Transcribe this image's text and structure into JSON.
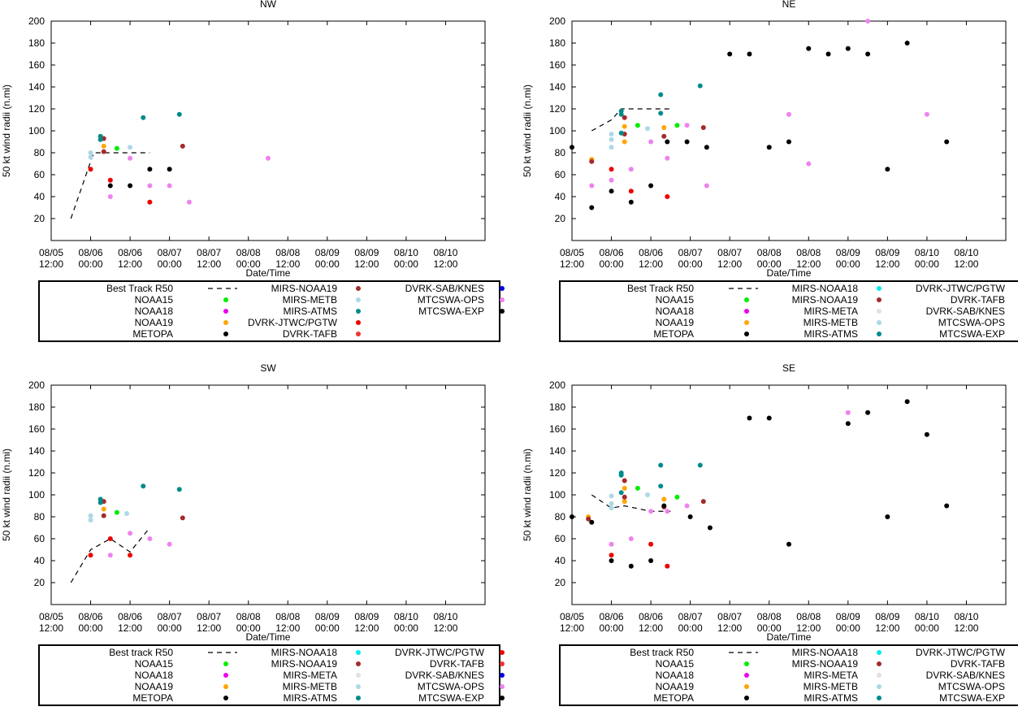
{
  "shared": {
    "xlabel": "Date/Time",
    "ylabel": "50 kt wind radii (n.mi)",
    "ylim": [
      0,
      200
    ],
    "yticks": [
      20,
      40,
      60,
      80,
      100,
      120,
      140,
      160,
      180,
      200
    ],
    "xlim": [
      0,
      132
    ],
    "xticks": [
      {
        "x": 0,
        "line1": "08/05",
        "line2": "12:00"
      },
      {
        "x": 12,
        "line1": "08/06",
        "line2": "00:00"
      },
      {
        "x": 24,
        "line1": "08/06",
        "line2": "12:00"
      },
      {
        "x": 36,
        "line1": "08/07",
        "line2": "00:00"
      },
      {
        "x": 48,
        "line1": "08/07",
        "line2": "12:00"
      },
      {
        "x": 60,
        "line1": "08/08",
        "line2": "00:00"
      },
      {
        "x": 72,
        "line1": "08/08",
        "line2": "12:00"
      },
      {
        "x": 84,
        "line1": "08/09",
        "line2": "00:00"
      },
      {
        "x": 96,
        "line1": "08/09",
        "line2": "12:00"
      },
      {
        "x": 108,
        "line1": "08/10",
        "line2": "00:00"
      },
      {
        "x": 120,
        "line1": "08/10",
        "line2": "12:00"
      }
    ],
    "colors": {
      "NOAA15": "#00ee00",
      "NOAA18": "#ee00ee",
      "NOAA19": "#ffa500",
      "METOPA": "#000000",
      "MIRS-NOAA18": "#00eeee",
      "MIRS-NOAA19": "#a52a2a",
      "MIRS-META": "#e8dede",
      "MIRS-METB": "#add8e6",
      "MIRS-ATMS": "#008b8b",
      "DVRK-JTWC/PGTW": "#ee0000",
      "DVRK-TAFB": "#ee3333",
      "DVRK-SAB/KNES": "#0000dd",
      "MTCSWA-OPS": "#ee82ee",
      "MTCSWA-EXP": "#000000"
    }
  },
  "chart_data": [
    {
      "type": "scatter",
      "title": "NW",
      "legend_title": "Best Track R50",
      "legend_cols": [
        [
          "Best Track R50",
          "NOAA15",
          "NOAA18",
          "NOAA19",
          "METOPA"
        ],
        [
          "MIRS-NOAA19",
          "MIRS-METB",
          "MIRS-ATMS",
          "DVRK-JTWC/PGTW",
          "DVRK-TAFB"
        ],
        [
          "DVRK-SAB/KNES",
          "MTCSWA-OPS",
          "MTCSWA-EXP"
        ]
      ],
      "best_track": [
        [
          6,
          20
        ],
        [
          12,
          72
        ],
        [
          13,
          80
        ],
        [
          30,
          80
        ]
      ],
      "series": [
        {
          "name": "NOAA15",
          "points": [
            [
              20,
              84
            ]
          ]
        },
        {
          "name": "NOAA19",
          "points": [
            [
              16,
              86
            ]
          ]
        },
        {
          "name": "MIRS-NOAA19",
          "points": [
            [
              16,
              81
            ],
            [
              16,
              93
            ],
            [
              40,
              86
            ]
          ]
        },
        {
          "name": "MIRS-METB",
          "points": [
            [
              12,
              76
            ],
            [
              12,
              80
            ],
            [
              24,
              85
            ]
          ]
        },
        {
          "name": "MIRS-ATMS",
          "points": [
            [
              15,
              95
            ],
            [
              15,
              92
            ],
            [
              28,
              112
            ],
            [
              39,
              115
            ]
          ]
        },
        {
          "name": "DVRK-JTWC/PGTW",
          "points": [
            [
              12,
              65
            ],
            [
              18,
              55
            ],
            [
              30,
              35
            ]
          ]
        },
        {
          "name": "MTCSWA-OPS",
          "points": [
            [
              18,
              40
            ],
            [
              24,
              75
            ],
            [
              30,
              50
            ],
            [
              36,
              50
            ],
            [
              42,
              35
            ],
            [
              66,
              75
            ]
          ]
        },
        {
          "name": "MTCSWA-EXP",
          "points": [
            [
              18,
              50
            ],
            [
              24,
              50
            ],
            [
              30,
              65
            ],
            [
              36,
              65
            ]
          ]
        }
      ]
    },
    {
      "type": "scatter",
      "title": "NE",
      "legend_title": "Best Track R50",
      "legend_cols": [
        [
          "Best Track R50",
          "NOAA15",
          "NOAA18",
          "NOAA19",
          "METOPA"
        ],
        [
          "MIRS-NOAA18",
          "MIRS-NOAA19",
          "MIRS-META",
          "MIRS-METB",
          "MIRS-ATMS"
        ],
        [
          "DVRK-JTWC/PGTW",
          "DVRK-TAFB",
          "DVRK-SAB/KNES",
          "MTCSWA-OPS",
          "MTCSWA-EXP"
        ]
      ],
      "best_track": [
        [
          6,
          100
        ],
        [
          12,
          110
        ],
        [
          15,
          120
        ],
        [
          30,
          120
        ]
      ],
      "series": [
        {
          "name": "NOAA15",
          "points": [
            [
              20,
              105
            ],
            [
              32,
              105
            ]
          ]
        },
        {
          "name": "NOAA19",
          "points": [
            [
              6,
              74
            ],
            [
              16,
              90
            ],
            [
              16,
              104
            ],
            [
              28,
              103
            ]
          ]
        },
        {
          "name": "MIRS-NOAA19",
          "points": [
            [
              6,
              72
            ],
            [
              16,
              97
            ],
            [
              16,
              112
            ],
            [
              28,
              95
            ],
            [
              40,
              103
            ]
          ]
        },
        {
          "name": "MIRS-METB",
          "points": [
            [
              12,
              85
            ],
            [
              12,
              92
            ],
            [
              12,
              97
            ],
            [
              23,
              102
            ]
          ]
        },
        {
          "name": "MIRS-ATMS",
          "points": [
            [
              15,
              118
            ],
            [
              15,
              115
            ],
            [
              15,
              98
            ],
            [
              27,
              133
            ],
            [
              27,
              116
            ],
            [
              39,
              141
            ]
          ]
        },
        {
          "name": "DVRK-JTWC/PGTW",
          "points": [
            [
              12,
              65
            ],
            [
              18,
              45
            ],
            [
              29,
              40
            ]
          ]
        },
        {
          "name": "MTCSWA-OPS",
          "points": [
            [
              6,
              50
            ],
            [
              12,
              55
            ],
            [
              18,
              65
            ],
            [
              24,
              90
            ],
            [
              29,
              75
            ],
            [
              35,
              105
            ],
            [
              41,
              50
            ],
            [
              66,
              115
            ],
            [
              72,
              70
            ],
            [
              90,
              200
            ],
            [
              108,
              115
            ]
          ]
        },
        {
          "name": "MTCSWA-EXP",
          "points": [
            [
              0,
              85
            ],
            [
              6,
              30
            ],
            [
              12,
              45
            ],
            [
              18,
              35
            ],
            [
              24,
              50
            ],
            [
              29,
              90
            ],
            [
              35,
              90
            ],
            [
              41,
              85
            ],
            [
              48,
              170
            ],
            [
              54,
              170
            ],
            [
              60,
              85
            ],
            [
              66,
              90
            ],
            [
              72,
              175
            ],
            [
              78,
              170
            ],
            [
              84,
              175
            ],
            [
              90,
              170
            ],
            [
              96,
              65
            ],
            [
              102,
              180
            ],
            [
              114,
              90
            ]
          ]
        }
      ]
    },
    {
      "type": "scatter",
      "title": "SW",
      "legend_title": "Best track R50",
      "legend_cols": [
        [
          "Best track R50",
          "NOAA15",
          "NOAA18",
          "NOAA19",
          "METOPA"
        ],
        [
          "MIRS-NOAA18",
          "MIRS-NOAA19",
          "MIRS-META",
          "MIRS-METB",
          "MIRS-ATMS"
        ],
        [
          "DVRK-JTWC/PGTW",
          "DVRK-TAFB",
          "DVRK-SAB/KNES",
          "MTCSWA-OPS",
          "MTCSWA-EXP"
        ]
      ],
      "best_track": [
        [
          6,
          20
        ],
        [
          12,
          50
        ],
        [
          18,
          60
        ],
        [
          24,
          48
        ],
        [
          30,
          70
        ]
      ],
      "series": [
        {
          "name": "NOAA15",
          "points": [
            [
              20,
              84
            ]
          ]
        },
        {
          "name": "NOAA19",
          "points": [
            [
              16,
              87
            ]
          ]
        },
        {
          "name": "MIRS-NOAA19",
          "points": [
            [
              16,
              81
            ],
            [
              16,
              94
            ],
            [
              40,
              79
            ]
          ]
        },
        {
          "name": "MIRS-METB",
          "points": [
            [
              12,
              77
            ],
            [
              12,
              81
            ],
            [
              23,
              83
            ]
          ]
        },
        {
          "name": "MIRS-ATMS",
          "points": [
            [
              15,
              96
            ],
            [
              15,
              93
            ],
            [
              28,
              108
            ],
            [
              39,
              105
            ]
          ]
        },
        {
          "name": "DVRK-JTWC/PGTW",
          "points": [
            [
              12,
              45
            ],
            [
              18,
              60
            ],
            [
              24,
              45
            ]
          ]
        },
        {
          "name": "MTCSWA-OPS",
          "points": [
            [
              18,
              45
            ],
            [
              24,
              65
            ],
            [
              30,
              60
            ],
            [
              36,
              55
            ]
          ]
        }
      ]
    },
    {
      "type": "scatter",
      "title": "SE",
      "legend_title": "Best track R50",
      "legend_cols": [
        [
          "Best track R50",
          "NOAA15",
          "NOAA18",
          "NOAA19",
          "METOPA"
        ],
        [
          "MIRS-NOAA18",
          "MIRS-NOAA19",
          "MIRS-META",
          "MIRS-METB",
          "MIRS-ATMS"
        ],
        [
          "DVRK-JTWC/PGTW",
          "DVRK-TAFB",
          "DVRK-SAB/KNES",
          "MTCSWA-OPS",
          "MTCSWA-EXP"
        ]
      ],
      "best_track": [
        [
          6,
          100
        ],
        [
          9,
          94
        ],
        [
          12,
          88
        ],
        [
          16,
          90
        ],
        [
          24,
          85
        ],
        [
          30,
          85
        ]
      ],
      "series": [
        {
          "name": "NOAA15",
          "points": [
            [
              20,
              106
            ],
            [
              32,
              98
            ]
          ]
        },
        {
          "name": "NOAA19",
          "points": [
            [
              5,
              80
            ],
            [
              16,
              94
            ],
            [
              16,
              106
            ],
            [
              28,
              96
            ]
          ]
        },
        {
          "name": "MIRS-NOAA19",
          "points": [
            [
              5,
              78
            ],
            [
              16,
              98
            ],
            [
              16,
              113
            ],
            [
              28,
              89
            ],
            [
              40,
              94
            ]
          ]
        },
        {
          "name": "MIRS-METB",
          "points": [
            [
              12,
              88
            ],
            [
              12,
              92
            ],
            [
              12,
              99
            ],
            [
              23,
              100
            ]
          ]
        },
        {
          "name": "MIRS-ATMS",
          "points": [
            [
              15,
              120
            ],
            [
              15,
              118
            ],
            [
              15,
              102
            ],
            [
              27,
              127
            ],
            [
              27,
              108
            ],
            [
              39,
              127
            ]
          ]
        },
        {
          "name": "DVRK-JTWC/PGTW",
          "points": [
            [
              12,
              45
            ],
            [
              24,
              55
            ],
            [
              29,
              35
            ]
          ]
        },
        {
          "name": "MTCSWA-OPS",
          "points": [
            [
              12,
              55
            ],
            [
              18,
              60
            ],
            [
              24,
              85
            ],
            [
              29,
              85
            ],
            [
              35,
              90
            ],
            [
              84,
              175
            ]
          ]
        },
        {
          "name": "MTCSWA-EXP",
          "points": [
            [
              0,
              80
            ],
            [
              6,
              75
            ],
            [
              12,
              40
            ],
            [
              18,
              35
            ],
            [
              24,
              40
            ],
            [
              28,
              90
            ],
            [
              36,
              80
            ],
            [
              42,
              70
            ],
            [
              54,
              170
            ],
            [
              60,
              170
            ],
            [
              66,
              55
            ],
            [
              84,
              165
            ],
            [
              90,
              175
            ],
            [
              96,
              80
            ],
            [
              102,
              185
            ],
            [
              108,
              155
            ],
            [
              114,
              90
            ]
          ]
        }
      ]
    }
  ]
}
